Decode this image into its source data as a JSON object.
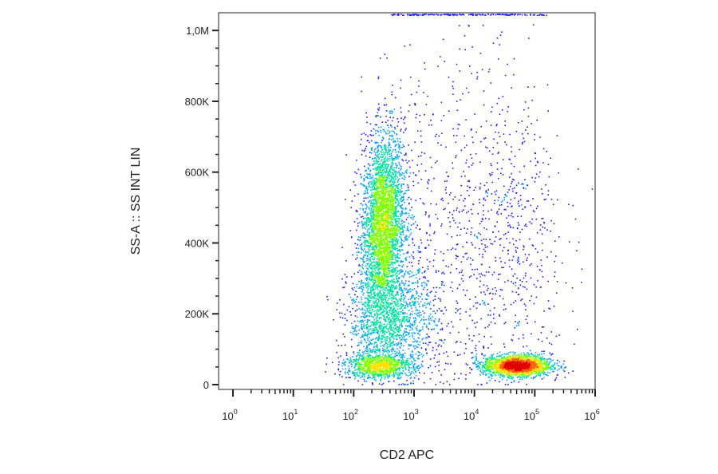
{
  "chart_data": {
    "type": "scatter",
    "subtype": "flow-cytometry-density",
    "title": "",
    "xlabel": "CD2 APC",
    "ylabel": "SS-A :: SS INT LIN",
    "x_scale": "log",
    "xlim": [
      1,
      1000000
    ],
    "ylim": [
      0,
      1050000
    ],
    "x_ticks": [
      {
        "base": "10",
        "exp": "0",
        "value": 1
      },
      {
        "base": "10",
        "exp": "1",
        "value": 10
      },
      {
        "base": "10",
        "exp": "2",
        "value": 100
      },
      {
        "base": "10",
        "exp": "3",
        "value": 1000
      },
      {
        "base": "10",
        "exp": "4",
        "value": 10000
      },
      {
        "base": "10",
        "exp": "5",
        "value": 100000
      },
      {
        "base": "10",
        "exp": "6",
        "value": 1000000
      }
    ],
    "y_ticks": [
      {
        "label": "0",
        "value": 0
      },
      {
        "label": "200K",
        "value": 200000
      },
      {
        "label": "400K",
        "value": 400000
      },
      {
        "label": "600K",
        "value": 600000
      },
      {
        "label": "800K",
        "value": 800000
      },
      {
        "label": "1,0M",
        "value": 1000000
      }
    ],
    "color_scale": [
      "#1a1aff",
      "#00a0ff",
      "#00e0a0",
      "#80ff00",
      "#ffe000",
      "#ff6000",
      "#e00000"
    ],
    "populations": [
      {
        "x_center": 300,
        "y_center": 450000,
        "x_spread_decades": 0.18,
        "y_spread": 130000,
        "weight": 0.38,
        "peak": "red"
      },
      {
        "x_center": 400,
        "y_center": 180000,
        "x_spread_decades": 0.35,
        "y_spread": 80000,
        "weight": 0.16,
        "peak": "cyan"
      },
      {
        "x_center": 250,
        "y_center": 55000,
        "x_spread_decades": 0.28,
        "y_spread": 18000,
        "weight": 0.1,
        "peak": "green"
      },
      {
        "x_center": 50000,
        "y_center": 55000,
        "x_spread_decades": 0.28,
        "y_spread": 15000,
        "weight": 0.22,
        "peak": "red"
      },
      {
        "x_center": 40000,
        "y_center": 420000,
        "x_spread_decades": 0.45,
        "y_spread": 220000,
        "weight": 0.06,
        "peak": "blue"
      },
      {
        "x_center": 3000,
        "y_center": 350000,
        "x_spread_decades": 0.6,
        "y_spread": 300000,
        "weight": 0.08,
        "peak": "blue"
      }
    ],
    "grid": false,
    "legend": "none"
  }
}
